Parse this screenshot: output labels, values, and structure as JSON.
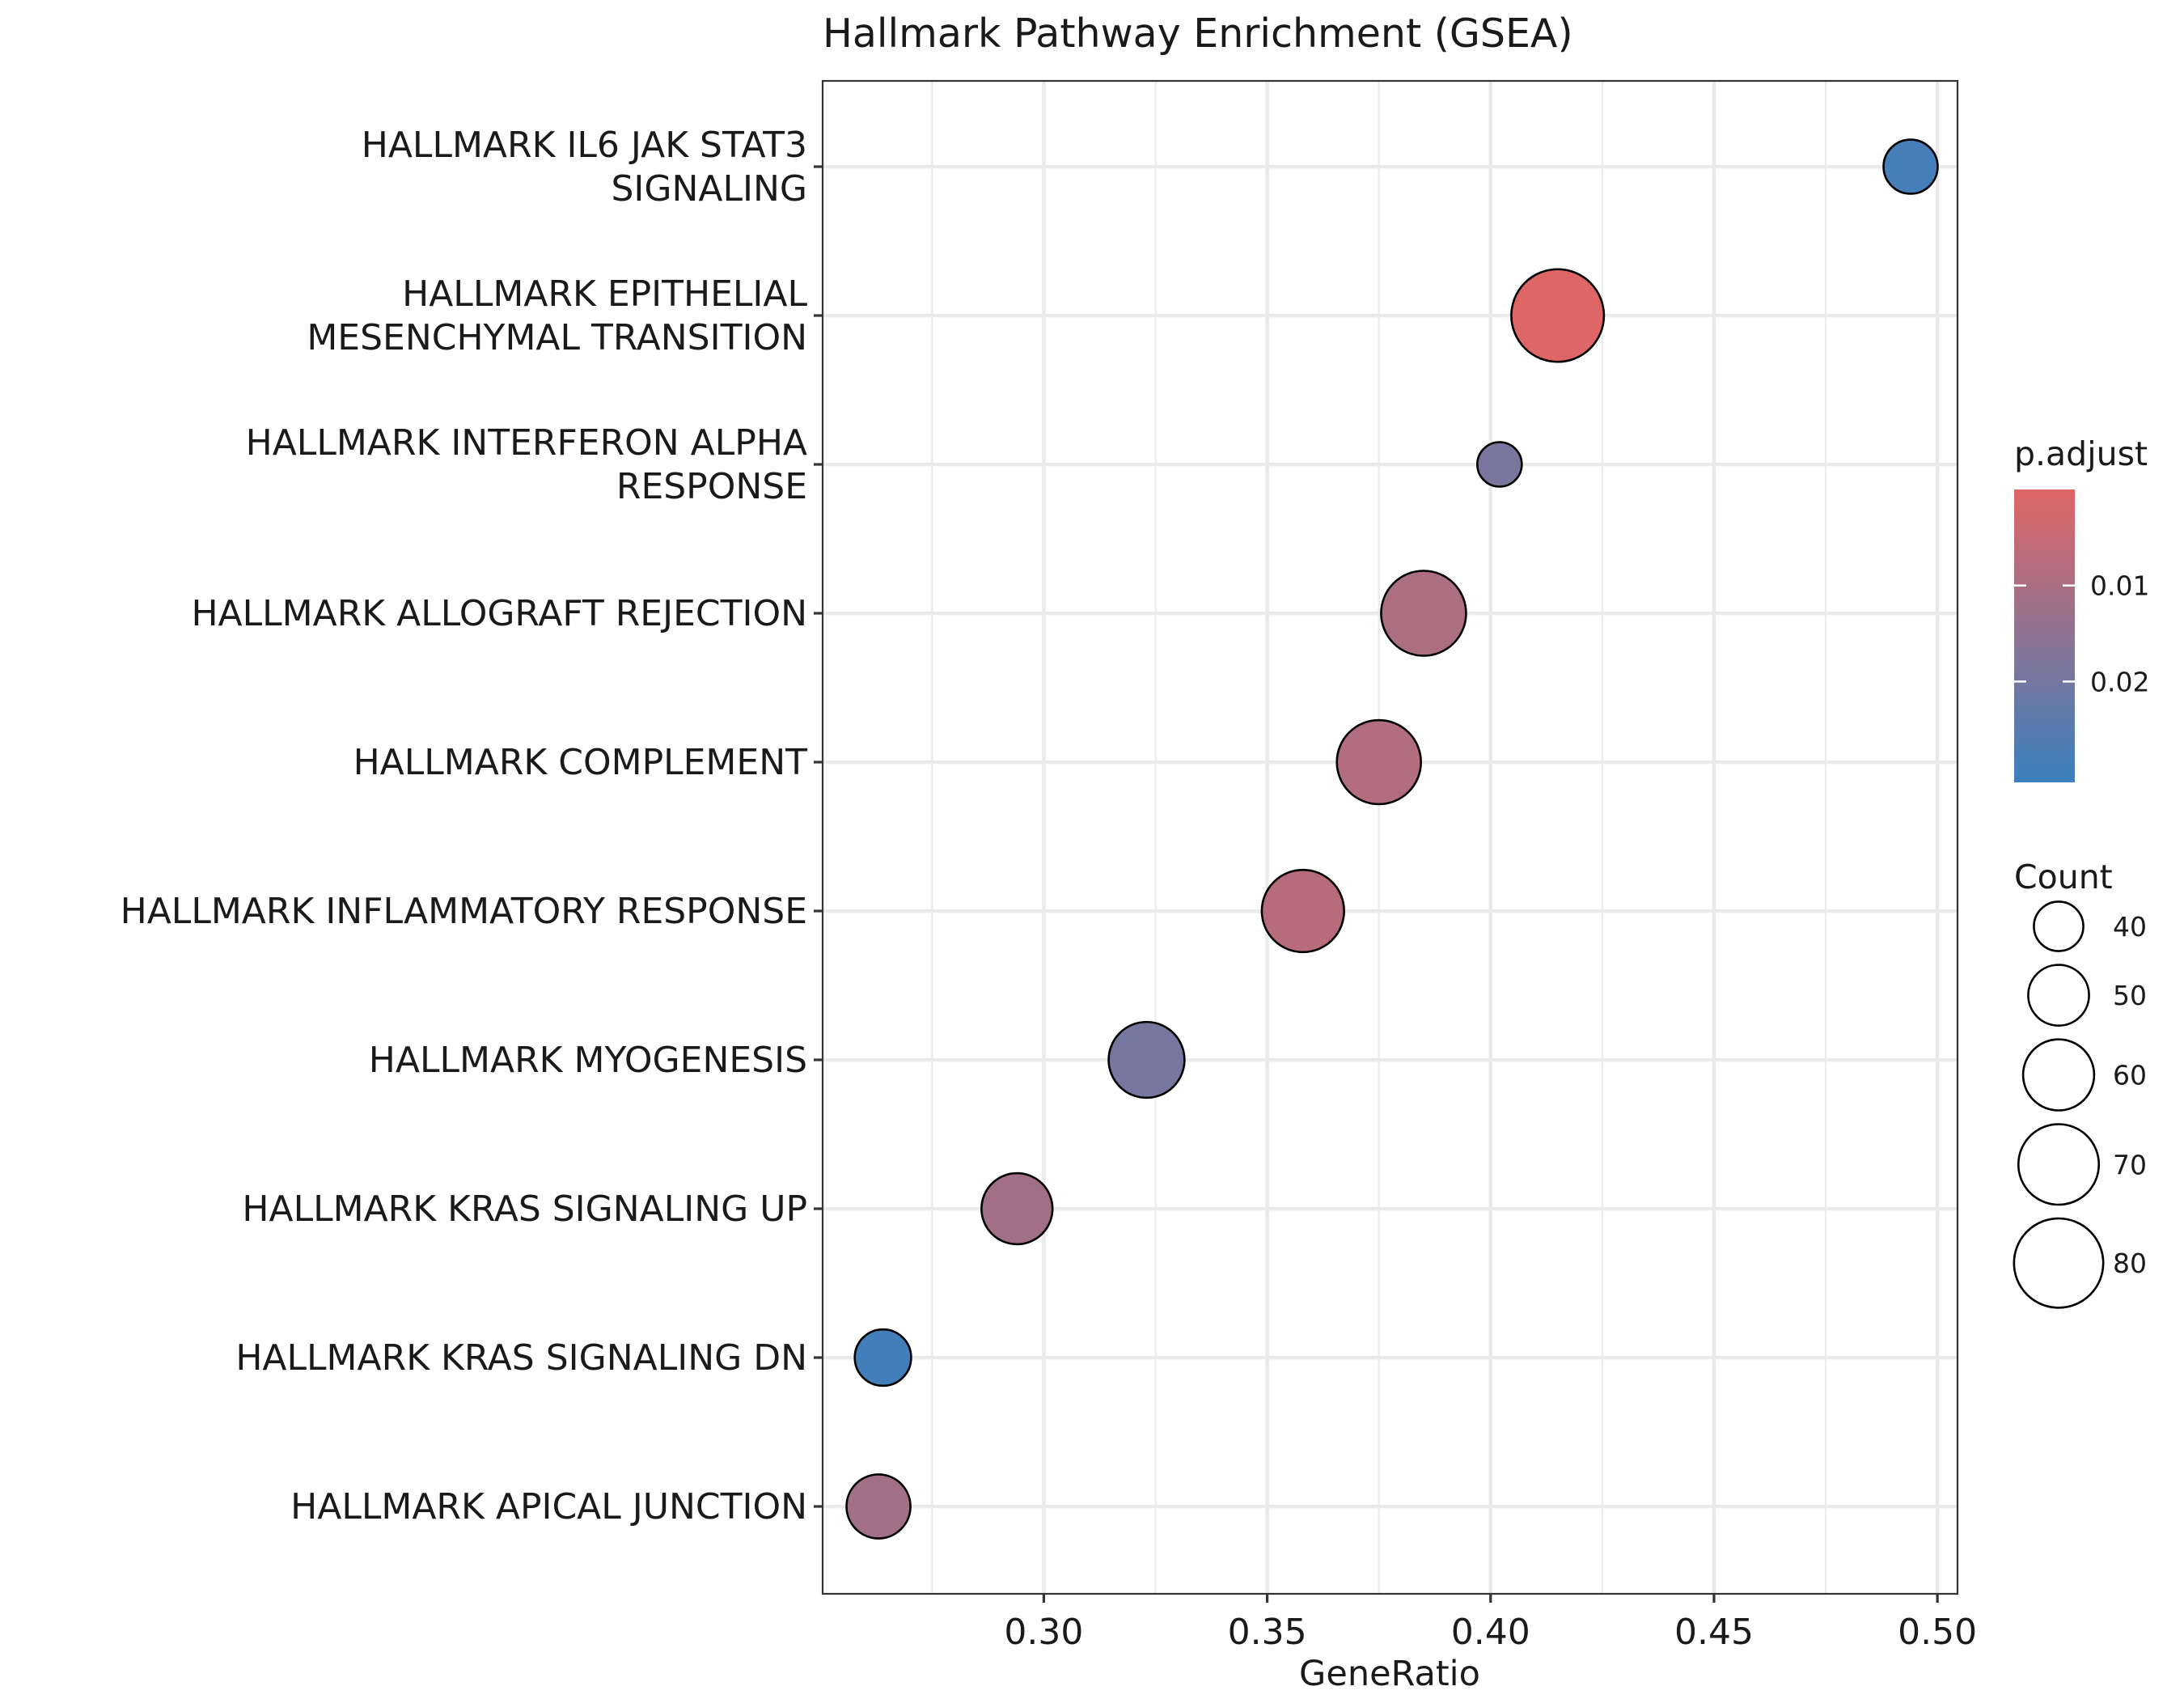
{
  "chart_data": {
    "type": "scatter",
    "title": "Hallmark Pathway Enrichment (GSEA)",
    "xlabel": "GeneRatio",
    "ylabel": "",
    "xlim": [
      0.2505,
      0.5045
    ],
    "xticks": [
      0.3,
      0.35,
      0.4,
      0.45,
      0.5
    ],
    "xtick_labels": [
      "0.30",
      "0.35",
      "0.40",
      "0.45",
      "0.50"
    ],
    "grid": true,
    "categories": [
      "HALLMARK IL6 JAK STAT3\nSIGNALING",
      "HALLMARK EPITHELIAL\nMESENCHYMAL TRANSITION",
      "HALLMARK INTERFERON ALPHA\nRESPONSE",
      "HALLMARK ALLOGRAFT REJECTION",
      "HALLMARK COMPLEMENT",
      "HALLMARK INFLAMMATORY RESPONSE",
      "HALLMARK MYOGENESIS",
      "HALLMARK KRAS SIGNALING UP",
      "HALLMARK KRAS SIGNALING DN",
      "HALLMARK APICAL JUNCTION"
    ],
    "points": [
      {
        "x": 0.494,
        "count": 44,
        "p_adjust": 0.0285
      },
      {
        "x": 0.415,
        "count": 84,
        "p_adjust": 0.0003
      },
      {
        "x": 0.402,
        "count": 36,
        "p_adjust": 0.019
      },
      {
        "x": 0.385,
        "count": 75,
        "p_adjust": 0.0095
      },
      {
        "x": 0.375,
        "count": 74,
        "p_adjust": 0.0085
      },
      {
        "x": 0.358,
        "count": 72,
        "p_adjust": 0.0075
      },
      {
        "x": 0.323,
        "count": 65,
        "p_adjust": 0.0195
      },
      {
        "x": 0.294,
        "count": 60,
        "p_adjust": 0.0115
      },
      {
        "x": 0.264,
        "count": 46,
        "p_adjust": 0.029
      },
      {
        "x": 0.263,
        "count": 53,
        "p_adjust": 0.0115
      }
    ],
    "color_legend": {
      "title": "p.adjust",
      "range": [
        0.0,
        0.0305
      ],
      "ticks": [
        0.01,
        0.02
      ],
      "tick_labels": [
        "0.01",
        "0.02"
      ],
      "low_color": "#E06666",
      "high_color": "#3A80BE"
    },
    "size_legend": {
      "title": "Count",
      "values": [
        40,
        50,
        60,
        70,
        80
      ],
      "labels": [
        "40",
        "50",
        "60",
        "70",
        "80"
      ]
    },
    "legend_position": "right"
  }
}
